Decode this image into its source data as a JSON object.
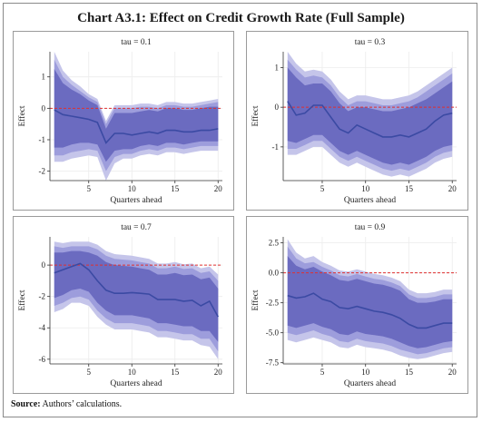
{
  "title": "Chart A3.1: Effect on Credit Growth Rate (Full Sample)",
  "source_label": "Source:",
  "source_text": " Authors’ calculations.",
  "colors": {
    "band_outer": "#c5c5ea",
    "band_middle": "#9d9ddc",
    "band_inner": "#6b6bc0",
    "line": "#3b4aa3",
    "zero_line": "#e03030",
    "grid": "#ececec"
  },
  "chart_data": [
    {
      "type": "area",
      "title": "tau = 0.1",
      "xlabel": "Quarters ahead",
      "ylabel": "Effect",
      "xlim": [
        0.5,
        20.5
      ],
      "ylim": [
        -2.3,
        1.8
      ],
      "xticks": [
        5,
        10,
        15,
        20
      ],
      "yticks": [
        1,
        0,
        -1,
        -2
      ],
      "ytick_labels": [
        "1",
        "0",
        "-1",
        "-2"
      ],
      "zero_line": 0,
      "x": [
        1,
        2,
        3,
        4,
        5,
        6,
        7,
        8,
        9,
        10,
        11,
        12,
        13,
        14,
        15,
        16,
        17,
        18,
        19,
        20
      ],
      "estimate": [
        -0.05,
        -0.2,
        -0.25,
        -0.3,
        -0.35,
        -0.45,
        -1.1,
        -0.8,
        -0.8,
        -0.85,
        -0.8,
        -0.75,
        -0.8,
        -0.7,
        -0.7,
        -0.75,
        -0.75,
        -0.7,
        -0.7,
        -0.65
      ],
      "bands": [
        {
          "lower": [
            -1.7,
            -1.7,
            -1.6,
            -1.55,
            -1.5,
            -1.55,
            -2.3,
            -1.75,
            -1.6,
            -1.6,
            -1.5,
            -1.45,
            -1.5,
            -1.4,
            -1.4,
            -1.45,
            -1.4,
            -1.35,
            -1.35,
            -1.35
          ],
          "upper": [
            1.8,
            1.2,
            0.9,
            0.7,
            0.45,
            0.3,
            -0.4,
            0.1,
            0.1,
            0.1,
            0.15,
            0.15,
            0.1,
            0.2,
            0.2,
            0.15,
            0.15,
            0.2,
            0.25,
            0.3
          ]
        },
        {
          "lower": [
            -1.5,
            -1.5,
            -1.4,
            -1.35,
            -1.3,
            -1.35,
            -2.0,
            -1.55,
            -1.45,
            -1.45,
            -1.35,
            -1.3,
            -1.35,
            -1.25,
            -1.25,
            -1.3,
            -1.25,
            -1.2,
            -1.2,
            -1.2
          ],
          "upper": [
            1.55,
            1.0,
            0.75,
            0.55,
            0.35,
            0.2,
            -0.5,
            0.0,
            0.0,
            0.0,
            0.05,
            0.05,
            0.0,
            0.1,
            0.1,
            0.05,
            0.05,
            0.1,
            0.15,
            0.2
          ]
        },
        {
          "lower": [
            -1.25,
            -1.25,
            -1.15,
            -1.1,
            -1.1,
            -1.15,
            -1.7,
            -1.35,
            -1.3,
            -1.3,
            -1.2,
            -1.15,
            -1.2,
            -1.1,
            -1.1,
            -1.15,
            -1.1,
            -1.05,
            -1.05,
            -1.05
          ],
          "upper": [
            1.25,
            0.8,
            0.6,
            0.45,
            0.25,
            0.1,
            -0.65,
            -0.15,
            -0.15,
            -0.15,
            -0.1,
            -0.05,
            -0.1,
            0.0,
            0.0,
            -0.05,
            -0.05,
            0.0,
            0.05,
            0.05
          ]
        }
      ]
    },
    {
      "type": "area",
      "title": "tau = 0.3",
      "xlabel": "Quarters ahead",
      "ylabel": "Effect",
      "xlim": [
        0.5,
        20.5
      ],
      "ylim": [
        -1.85,
        1.4
      ],
      "xticks": [
        5,
        10,
        15,
        20
      ],
      "yticks": [
        1,
        0,
        -1
      ],
      "ytick_labels": [
        "1",
        "0",
        "-1"
      ],
      "zero_line": 0,
      "x": [
        1,
        2,
        3,
        4,
        5,
        6,
        7,
        8,
        9,
        10,
        11,
        12,
        13,
        14,
        15,
        16,
        17,
        18,
        19,
        20
      ],
      "estimate": [
        0.15,
        -0.2,
        -0.15,
        0.05,
        0.05,
        -0.25,
        -0.55,
        -0.65,
        -0.45,
        -0.55,
        -0.65,
        -0.75,
        -0.75,
        -0.7,
        -0.75,
        -0.65,
        -0.55,
        -0.35,
        -0.2,
        -0.15
      ],
      "bands": [
        {
          "lower": [
            -1.2,
            -1.2,
            -1.1,
            -1.0,
            -1.0,
            -1.2,
            -1.4,
            -1.5,
            -1.4,
            -1.5,
            -1.6,
            -1.7,
            -1.75,
            -1.7,
            -1.75,
            -1.65,
            -1.55,
            -1.4,
            -1.3,
            -1.25
          ],
          "upper": [
            1.4,
            1.1,
            0.9,
            0.95,
            0.9,
            0.7,
            0.4,
            0.2,
            0.3,
            0.3,
            0.25,
            0.2,
            0.2,
            0.25,
            0.3,
            0.4,
            0.55,
            0.7,
            0.85,
            1.0
          ]
        },
        {
          "lower": [
            -1.05,
            -1.05,
            -0.95,
            -0.85,
            -0.85,
            -1.05,
            -1.25,
            -1.35,
            -1.25,
            -1.35,
            -1.45,
            -1.55,
            -1.6,
            -1.55,
            -1.6,
            -1.5,
            -1.4,
            -1.25,
            -1.15,
            -1.1
          ],
          "upper": [
            1.2,
            0.95,
            0.75,
            0.8,
            0.75,
            0.55,
            0.25,
            0.05,
            0.15,
            0.15,
            0.1,
            0.05,
            0.05,
            0.1,
            0.15,
            0.25,
            0.4,
            0.55,
            0.7,
            0.85
          ]
        },
        {
          "lower": [
            -0.85,
            -0.9,
            -0.8,
            -0.7,
            -0.7,
            -0.9,
            -1.1,
            -1.2,
            -1.1,
            -1.2,
            -1.3,
            -1.4,
            -1.45,
            -1.4,
            -1.45,
            -1.35,
            -1.25,
            -1.1,
            -1.0,
            -0.95
          ],
          "upper": [
            1.0,
            0.75,
            0.55,
            0.6,
            0.6,
            0.4,
            0.1,
            -0.1,
            0.0,
            0.0,
            -0.05,
            -0.1,
            -0.1,
            -0.05,
            0.0,
            0.1,
            0.2,
            0.35,
            0.5,
            0.65
          ]
        }
      ]
    },
    {
      "type": "area",
      "title": "tau = 0.7",
      "xlabel": "Quarters ahead",
      "ylabel": "Effect",
      "xlim": [
        0.5,
        20.5
      ],
      "ylim": [
        -6.3,
        1.8
      ],
      "xticks": [
        5,
        10,
        15,
        20
      ],
      "yticks": [
        0,
        -2,
        -4,
        -6
      ],
      "ytick_labels": [
        "0",
        "-2",
        "-4",
        "-6"
      ],
      "zero_line": 0,
      "x": [
        1,
        2,
        3,
        4,
        5,
        6,
        7,
        8,
        9,
        10,
        11,
        12,
        13,
        14,
        15,
        16,
        17,
        18,
        19,
        20
      ],
      "estimate": [
        -0.5,
        -0.3,
        -0.1,
        0.1,
        -0.3,
        -1.0,
        -1.6,
        -1.8,
        -1.8,
        -1.75,
        -1.8,
        -1.85,
        -2.2,
        -2.2,
        -2.2,
        -2.3,
        -2.25,
        -2.6,
        -2.3,
        -3.3
      ],
      "bands": [
        {
          "lower": [
            -3.0,
            -2.8,
            -2.4,
            -2.4,
            -2.6,
            -3.3,
            -3.8,
            -4.1,
            -4.1,
            -4.1,
            -4.2,
            -4.3,
            -4.6,
            -4.6,
            -4.7,
            -4.8,
            -4.8,
            -5.1,
            -5.2,
            -6.0
          ],
          "upper": [
            1.5,
            1.4,
            1.5,
            1.5,
            1.5,
            1.3,
            0.9,
            0.7,
            0.65,
            0.6,
            0.5,
            0.4,
            0.1,
            0.1,
            0.2,
            0.05,
            0.1,
            -0.2,
            -0.1,
            -0.6
          ]
        },
        {
          "lower": [
            -2.6,
            -2.4,
            -2.1,
            -2.0,
            -2.2,
            -2.9,
            -3.4,
            -3.7,
            -3.7,
            -3.7,
            -3.8,
            -3.9,
            -4.2,
            -4.2,
            -4.3,
            -4.4,
            -4.4,
            -4.7,
            -4.7,
            -5.5
          ],
          "upper": [
            1.2,
            1.1,
            1.2,
            1.2,
            1.2,
            1.0,
            0.6,
            0.4,
            0.35,
            0.3,
            0.2,
            0.1,
            -0.2,
            -0.2,
            -0.1,
            -0.25,
            -0.2,
            -0.5,
            -0.4,
            -1.0
          ]
        },
        {
          "lower": [
            -2.1,
            -1.9,
            -1.6,
            -1.5,
            -1.7,
            -2.4,
            -2.9,
            -3.2,
            -3.2,
            -3.2,
            -3.3,
            -3.4,
            -3.7,
            -3.7,
            -3.8,
            -3.9,
            -3.9,
            -4.2,
            -4.2,
            -4.9
          ],
          "upper": [
            0.8,
            0.8,
            0.9,
            0.9,
            0.8,
            0.6,
            0.2,
            0.0,
            -0.05,
            -0.1,
            -0.2,
            -0.3,
            -0.6,
            -0.6,
            -0.5,
            -0.65,
            -0.6,
            -0.9,
            -0.8,
            -1.5
          ]
        }
      ]
    },
    {
      "type": "area",
      "title": "tau = 0.9",
      "xlabel": "Quarters ahead",
      "ylabel": "Effect",
      "xlim": [
        0.5,
        20.5
      ],
      "ylim": [
        -7.6,
        3.0
      ],
      "xticks": [
        5,
        10,
        15,
        20
      ],
      "yticks": [
        2.5,
        0.0,
        -2.5,
        -5.0,
        -7.5
      ],
      "ytick_labels": [
        "2.5",
        "0.0",
        "-2.5",
        "-5.0",
        "-7.5"
      ],
      "zero_line": 0,
      "x": [
        1,
        2,
        3,
        4,
        5,
        6,
        7,
        8,
        9,
        10,
        11,
        12,
        13,
        14,
        15,
        16,
        17,
        18,
        19,
        20
      ],
      "estimate": [
        -1.9,
        -2.1,
        -2.0,
        -1.7,
        -2.2,
        -2.4,
        -2.9,
        -3.0,
        -2.8,
        -3.0,
        -3.2,
        -3.3,
        -3.5,
        -3.8,
        -4.3,
        -4.6,
        -4.6,
        -4.4,
        -4.2,
        -4.2
      ],
      "bands": [
        {
          "lower": [
            -5.6,
            -5.8,
            -5.6,
            -5.4,
            -5.6,
            -5.8,
            -6.2,
            -6.3,
            -6.0,
            -6.2,
            -6.3,
            -6.4,
            -6.6,
            -6.9,
            -7.1,
            -7.2,
            -7.1,
            -6.9,
            -6.7,
            -6.6
          ],
          "upper": [
            2.8,
            1.7,
            1.2,
            1.4,
            0.9,
            0.6,
            0.2,
            0.1,
            0.3,
            0.1,
            -0.1,
            -0.2,
            -0.4,
            -0.7,
            -1.4,
            -1.7,
            -1.7,
            -1.6,
            -1.4,
            -1.4
          ]
        },
        {
          "lower": [
            -5.0,
            -5.2,
            -5.0,
            -4.8,
            -5.1,
            -5.3,
            -5.7,
            -5.8,
            -5.5,
            -5.7,
            -5.8,
            -5.9,
            -6.1,
            -6.4,
            -6.6,
            -6.8,
            -6.7,
            -6.5,
            -6.3,
            -6.2
          ],
          "upper": [
            2.2,
            1.2,
            0.8,
            0.9,
            0.5,
            0.2,
            -0.2,
            -0.3,
            -0.1,
            -0.3,
            -0.5,
            -0.6,
            -0.8,
            -1.1,
            -1.8,
            -2.1,
            -2.1,
            -2.0,
            -1.8,
            -1.8
          ]
        },
        {
          "lower": [
            -4.4,
            -4.6,
            -4.4,
            -4.2,
            -4.5,
            -4.7,
            -5.1,
            -5.2,
            -4.9,
            -5.1,
            -5.2,
            -5.3,
            -5.5,
            -5.8,
            -6.1,
            -6.3,
            -6.2,
            -6.0,
            -5.8,
            -5.7
          ],
          "upper": [
            1.4,
            0.6,
            0.3,
            0.5,
            0.1,
            -0.2,
            -0.6,
            -0.7,
            -0.5,
            -0.7,
            -0.9,
            -1.0,
            -1.2,
            -1.5,
            -2.2,
            -2.5,
            -2.5,
            -2.4,
            -2.2,
            -2.2
          ]
        }
      ]
    }
  ]
}
